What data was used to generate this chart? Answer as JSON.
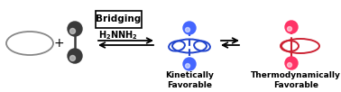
{
  "bg_color": "#ffffff",
  "ellipse_color": "#888888",
  "ball_dark": "#3a3a3a",
  "ball_highlight": "#cccccc",
  "blue_color": "#2244cc",
  "blue_ball": "#4466ff",
  "red_color": "#cc2233",
  "red_ball": "#ff3366",
  "bridging_text": "Bridging",
  "kinetic_text": "Kinetically\nFavorable",
  "thermo_text": "Thermodynamically\nFavorable",
  "fig_width": 3.78,
  "fig_height": 1.02,
  "dpi": 100
}
